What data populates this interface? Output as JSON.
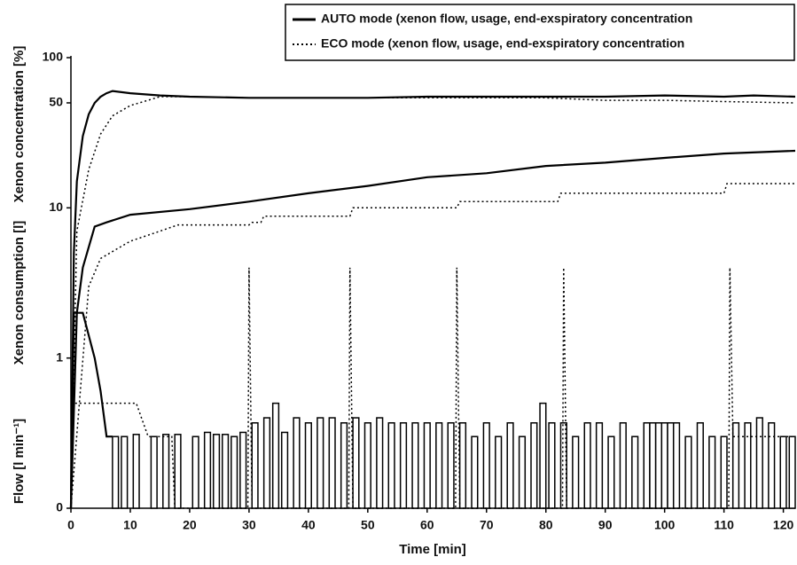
{
  "chart_data": {
    "type": "line",
    "x_label": "Time [min]",
    "y_labels": [
      "Xenon concentration [%]",
      "Xenon consumption [l]",
      "Flow [l min⁻¹]"
    ],
    "log_y": true,
    "xlim": [
      0,
      122
    ],
    "ylim": [
      0.1,
      100
    ],
    "xticks": [
      0,
      10,
      20,
      30,
      40,
      50,
      60,
      70,
      80,
      90,
      100,
      110,
      120
    ],
    "yticks": [
      {
        "value": 0.1,
        "label": "0"
      },
      1,
      10,
      50,
      100
    ],
    "series": [
      {
        "name": "AUTO mode (xenon flow, usage, end-exspiratory concentration",
        "color": "#000000",
        "dash": false,
        "curves": [
          {
            "type": "line",
            "x": [
              0,
              0.5,
              1,
              2,
              3,
              4,
              5,
              6,
              7,
              10,
              15,
              20,
              30,
              40,
              50,
              60,
              70,
              80,
              90,
              100,
              110,
              115,
              122
            ],
            "values": [
              0.1,
              5,
              15,
              30,
              42,
              50,
              55,
              58,
              60,
              58,
              56,
              55,
              54,
              54,
              54,
              55,
              55,
              55,
              55,
              56,
              55,
              56,
              55
            ]
          },
          {
            "type": "line",
            "x": [
              0,
              1,
              2,
              4,
              6,
              10,
              20,
              30,
              40,
              50,
              60,
              70,
              80,
              90,
              100,
              110,
              122
            ],
            "values": [
              0.1,
              2,
              4,
              7.5,
              8,
              9,
              9.8,
              11,
              12.5,
              14,
              16,
              17,
              19,
              20,
              21.5,
              23,
              24
            ]
          },
          {
            "type": "line",
            "x": [
              0,
              0.5,
              2,
              4,
              5,
              6,
              7
            ],
            "values": [
              0.1,
              2,
              2,
              1,
              0.6,
              0.3,
              0.3
            ]
          },
          {
            "type": "bars",
            "x": [
              7.5,
              9,
              11,
              14,
              16,
              18,
              21,
              23,
              24.5,
              26,
              27.5,
              29,
              31,
              33,
              34.5,
              36,
              38,
              40,
              42,
              44,
              46,
              48,
              50,
              52,
              54,
              56,
              58,
              60,
              62,
              64,
              66,
              68,
              70,
              72,
              74,
              76,
              78,
              79.5,
              81,
              83,
              85,
              87,
              89,
              91,
              93,
              95,
              97,
              98,
              99,
              100,
              101,
              102,
              104,
              106,
              108,
              110,
              112,
              114,
              116,
              118,
              120,
              121.5
            ],
            "values": [
              0.3,
              0.3,
              0.31,
              0.3,
              0.31,
              0.31,
              0.3,
              0.32,
              0.31,
              0.31,
              0.3,
              0.32,
              0.37,
              0.4,
              0.5,
              0.32,
              0.4,
              0.37,
              0.4,
              0.4,
              0.37,
              0.4,
              0.37,
              0.4,
              0.37,
              0.37,
              0.37,
              0.37,
              0.37,
              0.37,
              0.37,
              0.3,
              0.37,
              0.3,
              0.37,
              0.3,
              0.37,
              0.5,
              0.37,
              0.37,
              0.3,
              0.37,
              0.37,
              0.3,
              0.37,
              0.3,
              0.37,
              0.37,
              0.37,
              0.37,
              0.37,
              0.37,
              0.3,
              0.37,
              0.3,
              0.3,
              0.37,
              0.37,
              0.4,
              0.37,
              0.3,
              0.3
            ]
          }
        ]
      },
      {
        "name": "ECO mode (xenon flow, usage, end-exspiratory concentration",
        "color": "#000000",
        "dash": true,
        "curves": [
          {
            "type": "line",
            "x": [
              0,
              1,
              3,
              5,
              7,
              10,
              15,
              20,
              30,
              40,
              50,
              60,
              70,
              80,
              90,
              100,
              110,
              122
            ],
            "values": [
              0.1,
              7,
              18,
              31,
              41,
              48,
              55,
              55,
              54,
              54,
              54,
              54,
              54,
              54,
              52,
              52,
              51,
              50
            ]
          },
          {
            "type": "line",
            "x": [
              0,
              3,
              5,
              10,
              15,
              18,
              30,
              30.5,
              32,
              32.5,
              47,
              47.5,
              65,
              65.5,
              82,
              82.5,
              110,
              110.5,
              122
            ],
            "values": [
              0.1,
              3,
              4.6,
              6,
              7,
              7.7,
              7.7,
              8,
              8,
              8.8,
              8.8,
              10,
              10,
              11,
              11,
              12.5,
              12.5,
              14.5,
              14.5
            ]
          },
          {
            "type": "line",
            "x": [
              0,
              0.5,
              11,
              13,
              17,
              17.5,
              29.8,
              30,
              30.5,
              46.8,
              47,
              47.5,
              64.8,
              65,
              65.5,
              82.8,
              83,
              83.5,
              110.8,
              111,
              111.5,
              122
            ],
            "values": [
              0.1,
              0.5,
              0.5,
              0.3,
              0.3,
              0.1,
              0.1,
              4,
              0.1,
              0.1,
              4,
              0.1,
              0.1,
              4,
              0.1,
              0.1,
              4,
              0.1,
              0.1,
              4,
              0.3,
              0.3
            ]
          }
        ]
      }
    ]
  }
}
